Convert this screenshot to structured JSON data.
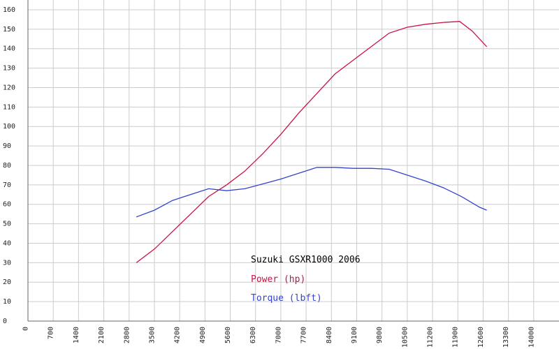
{
  "chart_data": {
    "type": "line",
    "title": "Suzuki GSXR1000 2006",
    "xlabel": "",
    "ylabel": "",
    "xlim": [
      0,
      14700
    ],
    "ylim": [
      0,
      165
    ],
    "grid": true,
    "legend_position": "center",
    "x_ticks": [
      "0",
      "700",
      "1400",
      "2100",
      "2800",
      "3500",
      "4200",
      "4900",
      "5600",
      "6300",
      "7000",
      "7700",
      "8400",
      "9100",
      "9800",
      "10500",
      "11200",
      "11900",
      "12600",
      "13300",
      "14000"
    ],
    "y_ticks": [
      "0",
      "10",
      "20",
      "30",
      "40",
      "50",
      "60",
      "70",
      "80",
      "90",
      "100",
      "110",
      "120",
      "130",
      "140",
      "150",
      "160"
    ],
    "series": [
      {
        "name": "Power (hp)",
        "color": "#cc1144",
        "x": [
          3000,
          3500,
          4000,
          4500,
          5000,
          5500,
          6000,
          6500,
          7000,
          7500,
          8000,
          8500,
          9000,
          9500,
          10000,
          10500,
          11000,
          11500,
          11950,
          12300,
          12700
        ],
        "y": [
          30,
          37,
          46,
          55,
          64,
          70,
          77,
          86,
          96,
          107,
          117,
          127,
          134,
          141,
          148,
          151,
          152.5,
          153.5,
          154,
          149,
          141
        ]
      },
      {
        "name": "Torque (lbft)",
        "color": "#3344cc",
        "x": [
          3000,
          3500,
          4000,
          4500,
          5000,
          5500,
          6000,
          6500,
          7000,
          7500,
          8000,
          8500,
          9000,
          9500,
          10000,
          10500,
          11000,
          11500,
          12000,
          12500,
          12700
        ],
        "y": [
          53.5,
          57,
          62,
          65,
          68,
          67,
          68,
          70.5,
          73,
          76,
          79,
          79,
          78.5,
          78.5,
          78,
          75,
          72,
          68.5,
          64,
          58.5,
          57
        ]
      }
    ]
  }
}
